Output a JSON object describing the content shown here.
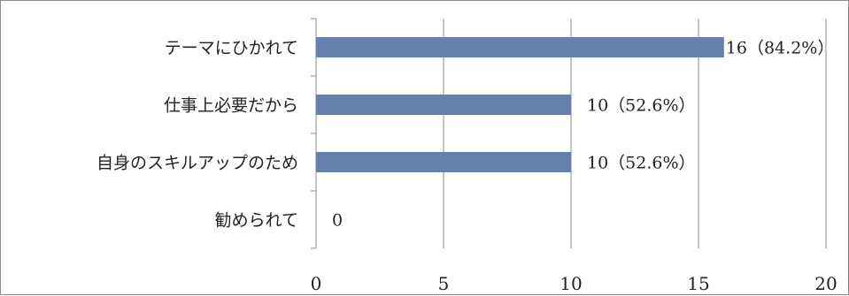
{
  "chart_data": {
    "type": "bar",
    "orientation": "horizontal",
    "title": "",
    "xlabel": "",
    "ylabel": "",
    "categories": [
      "テーマにひかれて",
      "仕事上必要だから",
      "自身のスキルアップのため",
      "勧められて"
    ],
    "values": [
      16,
      10,
      10,
      0
    ],
    "data_labels": [
      "16（84.2%）",
      "10（52.6%）",
      "10（52.6%）",
      "0"
    ],
    "xlim": [
      0,
      20
    ],
    "x_ticks": [
      0,
      5,
      10,
      15,
      20
    ],
    "grid": "vertical",
    "legend": "none",
    "colors": {
      "bar": "#6580ac",
      "grid": "#8c8c8c",
      "axis": "#8c8c8c",
      "border": "#8c8c8c"
    }
  }
}
